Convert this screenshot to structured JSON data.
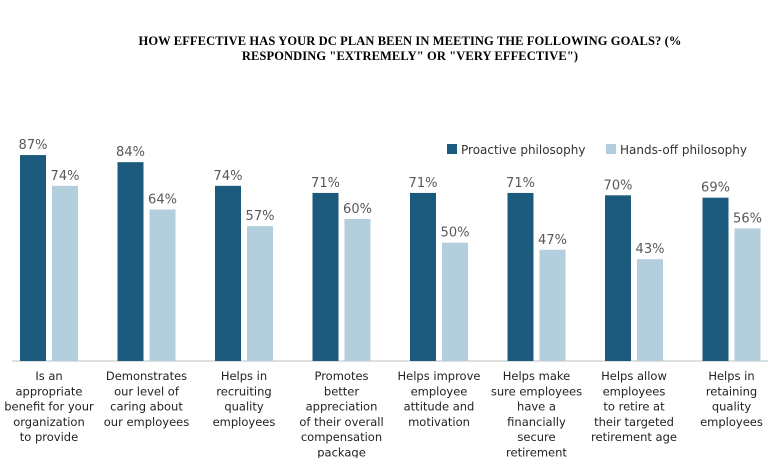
{
  "chart_data": {
    "type": "bar",
    "title": "HOW EFFECTIVE HAS YOUR DC PLAN BEEN IN MEETING THE FOLLOWING GOALS? (% RESPONDING \"EXTREMELY\" OR \"VERY EFFECTIVE\")",
    "categories": [
      [
        "Is an",
        "appropriate",
        "benefit for your",
        "organization",
        "to provide"
      ],
      [
        "Demonstrates",
        "our level of",
        "caring about",
        "our employees"
      ],
      [
        "Helps in",
        "recruiting",
        "quality",
        "employees"
      ],
      [
        "Promotes",
        "better",
        "appreciation",
        "of their overall",
        "compensation",
        "package"
      ],
      [
        "Helps improve",
        "employee",
        "attitude and",
        "motivation"
      ],
      [
        "Helps make",
        "sure employees",
        "have a",
        "financially",
        "secure",
        "retirement"
      ],
      [
        "Helps allow",
        "employees",
        "to retire at",
        "their targeted",
        "retirement age"
      ],
      [
        "Helps in",
        "retaining",
        "quality",
        "employees"
      ]
    ],
    "series": [
      {
        "name": "Proactive philosophy",
        "color": "#1c5a7d",
        "values": [
          87,
          84,
          74,
          71,
          71,
          71,
          70,
          69
        ],
        "labels": [
          "87%",
          "84%",
          "74%",
          "71%",
          "71%",
          "71%",
          "70%",
          "69%"
        ]
      },
      {
        "name": "Hands-off philosophy",
        "color": "#b3cedd",
        "values": [
          74,
          64,
          57,
          60,
          50,
          47,
          43,
          56
        ],
        "labels": [
          "74%",
          "64%",
          "57%",
          "60%",
          "50%",
          "47%",
          "43%",
          "56%"
        ]
      }
    ],
    "ylim": [
      0,
      100
    ],
    "grid": false,
    "legend_position": "top-right",
    "axis_line_color": "#bfbfbf"
  }
}
